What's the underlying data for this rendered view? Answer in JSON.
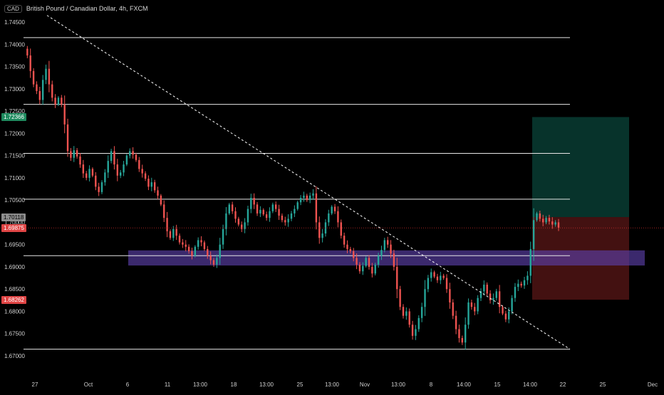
{
  "header": {
    "quote_badge": "CAD",
    "title": "British Pound / Canadian Dollar, 4h, FXCM"
  },
  "colors": {
    "background": "#000000",
    "candle_up": "#26a69a",
    "candle_down": "#ef5350",
    "level_line": "#e6e6e6",
    "trend_line": "#ffffff",
    "support_zone": "#5b3fa8",
    "target_zone": "#0d5c4f",
    "stop_zone": "#7a1f1f",
    "price_line": "#c72c2c"
  },
  "price_axis": {
    "labels": [
      "1.74500",
      "1.74000",
      "1.73500",
      "1.73000",
      "1.72500",
      "1.72000",
      "1.71500",
      "1.71000",
      "1.70500",
      "1.70000",
      "1.69500",
      "1.69000",
      "1.68500",
      "1.68000",
      "1.67500",
      "1.67000"
    ],
    "values": [
      1.745,
      1.74,
      1.735,
      1.73,
      1.725,
      1.72,
      1.715,
      1.71,
      1.705,
      1.7,
      1.695,
      1.69,
      1.685,
      1.68,
      1.675,
      1.67
    ],
    "badges": [
      {
        "label": "1.72366",
        "value": 1.72366,
        "bg": "#1e8a5e",
        "fg": "#ffffff"
      },
      {
        "label": "1.70118",
        "value": 1.70118,
        "bg": "#8c8c8c",
        "fg": "#000000"
      },
      {
        "label": "1.69875",
        "value": 1.69875,
        "bg": "#e04545",
        "fg": "#ffffff"
      },
      {
        "label": "1.68262",
        "value": 1.68262,
        "bg": "#e04545",
        "fg": "#ffffff"
      }
    ]
  },
  "time_axis": {
    "labels": [
      "27",
      "Oct",
      "6",
      "11",
      "13:00",
      "18",
      "13:00",
      "25",
      "13:00",
      "Nov",
      "13:00",
      "8",
      "14:00",
      "15",
      "14:00",
      "22",
      "25",
      "Dec"
    ]
  },
  "chart_data": {
    "type": "candlestick",
    "symbol": "British Pound / Canadian Dollar",
    "timeframe": "4h",
    "source": "FXCM",
    "ylim": [
      1.6695,
      1.7465
    ],
    "last_price": 1.69875,
    "horizontal_levels": [
      1.7415,
      1.7265,
      1.7155,
      1.7052,
      1.6925,
      1.6715
    ],
    "support_zone": {
      "from": 1.6903,
      "to": 1.6937
    },
    "trend_line": {
      "from_price": 1.7465,
      "to_price": 1.6715
    },
    "position": {
      "entry": 1.70118,
      "target": 1.72366,
      "stop": 1.68262
    },
    "candle_path": [
      1.739,
      1.7375,
      1.734,
      1.731,
      1.7295,
      1.7275,
      1.732,
      1.7345,
      1.731,
      1.728,
      1.7265,
      1.728,
      1.7265,
      1.722,
      1.716,
      1.7145,
      1.7162,
      1.7148,
      1.713,
      1.711,
      1.71,
      1.712,
      1.7105,
      1.708,
      1.7068,
      1.709,
      1.7112,
      1.7138,
      1.716,
      1.713,
      1.7105,
      1.7112,
      1.713,
      1.715,
      1.716,
      1.7152,
      1.714,
      1.712,
      1.711,
      1.7098,
      1.708,
      1.709,
      1.7072,
      1.706,
      1.704,
      1.701,
      1.698,
      1.6965,
      1.6985,
      1.697,
      1.6955,
      1.695,
      1.6945,
      1.6935,
      1.6925,
      1.6945,
      1.696,
      1.6955,
      1.694,
      1.6925,
      1.6915,
      1.6905,
      1.692,
      1.695,
      1.6985,
      1.702,
      1.704,
      1.7025,
      1.7008,
      1.6995,
      1.6985,
      1.7,
      1.703,
      1.7055,
      1.704,
      1.702,
      1.7028,
      1.7018,
      1.701,
      1.7025,
      1.704,
      1.703,
      1.7015,
      1.7005,
      1.7,
      1.7008,
      1.702,
      1.703,
      1.7045,
      1.7055,
      1.706,
      1.705,
      1.706,
      1.7065,
      1.7,
      1.6965,
      1.6975,
      1.7,
      1.702,
      1.7035,
      1.7025,
      1.7,
      1.697,
      1.695,
      1.694,
      1.6935,
      1.692,
      1.6905,
      1.689,
      1.6902,
      1.692,
      1.69,
      1.6885,
      1.6905,
      1.6925,
      1.6938,
      1.696,
      1.695,
      1.693,
      1.69,
      1.685,
      1.681,
      1.679,
      1.68,
      1.677,
      1.6745,
      1.676,
      1.6785,
      1.681,
      1.685,
      1.6875,
      1.6888,
      1.6878,
      1.687,
      1.688,
      1.6875,
      1.685,
      1.682,
      1.679,
      1.676,
      1.674,
      1.673,
      1.677,
      1.682,
      1.681,
      1.68,
      1.683,
      1.6845,
      1.686,
      1.684,
      1.6825,
      1.683,
      1.6845,
      1.681,
      1.6795,
      1.6782,
      1.68,
      1.683,
      1.6855,
      1.6862,
      1.6858,
      1.687,
      1.688,
      1.694,
      1.7005,
      1.702,
      1.7008,
      1.7,
      1.701,
      1.7002,
      1.6995,
      1.7,
      1.6988
    ]
  }
}
